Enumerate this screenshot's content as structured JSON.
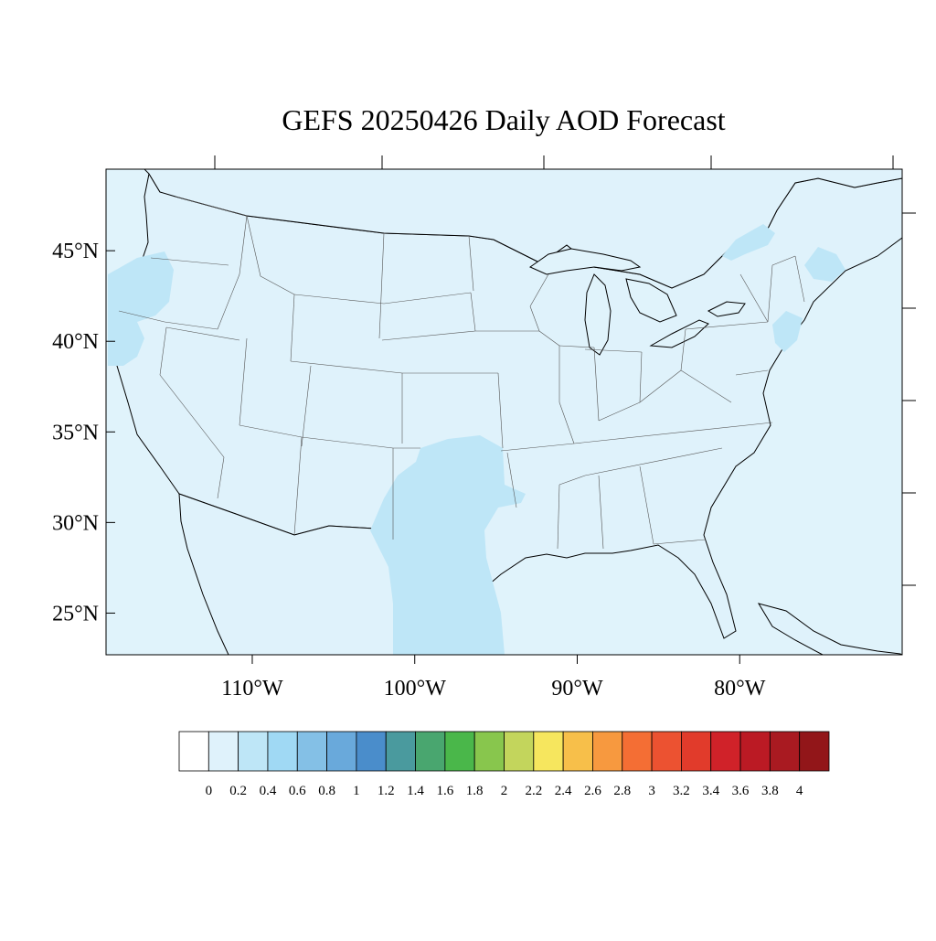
{
  "title": "GEFS 20250426 Daily AOD Forecast",
  "map": {
    "ocean_color": "#e0f3fb",
    "land_base_color": "#dff2fb",
    "coast_color": "#000000",
    "border_color": "#555555",
    "extent": {
      "lon_min": -119,
      "lon_max": -70,
      "lat_min": 22.7,
      "lat_max": 49.5
    },
    "lat_ticks": [
      {
        "value": 45,
        "label": "45°N"
      },
      {
        "value": 40,
        "label": "40°N"
      },
      {
        "value": 35,
        "label": "35°N"
      },
      {
        "value": 30,
        "label": "30°N"
      },
      {
        "value": 25,
        "label": "25°N"
      }
    ],
    "lon_ticks": [
      {
        "value": -110,
        "label": "110°W"
      },
      {
        "value": -100,
        "label": "100°W"
      },
      {
        "value": -90,
        "label": "90°W"
      },
      {
        "value": -80,
        "label": "80°W"
      }
    ],
    "aod_field": {
      "background_bin": "0-0.2",
      "elevated_regions": [
        {
          "region": "Pacific Northwest / northern California coast",
          "bin": "0.2-0.4"
        },
        {
          "region": "Texas and Oklahoma",
          "bin": "0.2-0.4"
        },
        {
          "region": "Upstate New York / Ontario",
          "bin": "0.2-0.4"
        },
        {
          "region": "New England coast",
          "bin": "0.2-0.4"
        },
        {
          "region": "New Jersey coast",
          "bin": "0.2-0.4"
        }
      ]
    }
  },
  "colorbar": {
    "labels": [
      "0",
      "0.2",
      "0.4",
      "0.6",
      "0.8",
      "1",
      "1.2",
      "1.4",
      "1.6",
      "1.8",
      "2",
      "2.2",
      "2.4",
      "2.6",
      "2.8",
      "3",
      "3.2",
      "3.4",
      "3.6",
      "3.8",
      "4"
    ],
    "colors": [
      "#ffffff",
      "#dff2fb",
      "#bee6f7",
      "#a0d9f4",
      "#84c0e6",
      "#69a9db",
      "#4a8dcb",
      "#4a9a9e",
      "#49a66f",
      "#4ab74a",
      "#88c64d",
      "#c3d55c",
      "#f6e65e",
      "#f7bf4a",
      "#f7993f",
      "#f46e34",
      "#ec5231",
      "#e13b2b",
      "#d02229",
      "#bb1a24",
      "#a91a21",
      "#921619"
    ]
  }
}
